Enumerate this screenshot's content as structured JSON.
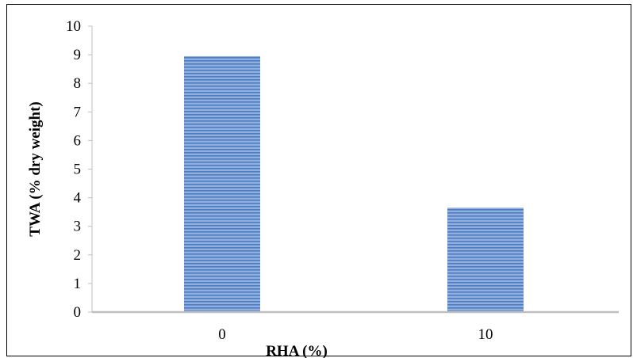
{
  "chart_data": {
    "type": "bar",
    "categories": [
      "0",
      "10"
    ],
    "values": [
      8.95,
      3.65
    ],
    "xlabel": "RHA (%)",
    "ylabel": "TWA (% dry weight)",
    "ylim": [
      0,
      10
    ],
    "yticks": [
      "0",
      "1",
      "2",
      "3",
      "4",
      "5",
      "6",
      "7",
      "8",
      "9",
      "10"
    ],
    "grid": false,
    "legend": "none",
    "colors": {
      "bar_fill": "#8fb0df",
      "bar_stripe": "#4f7cc0",
      "axis": "#bfbfbf"
    }
  }
}
